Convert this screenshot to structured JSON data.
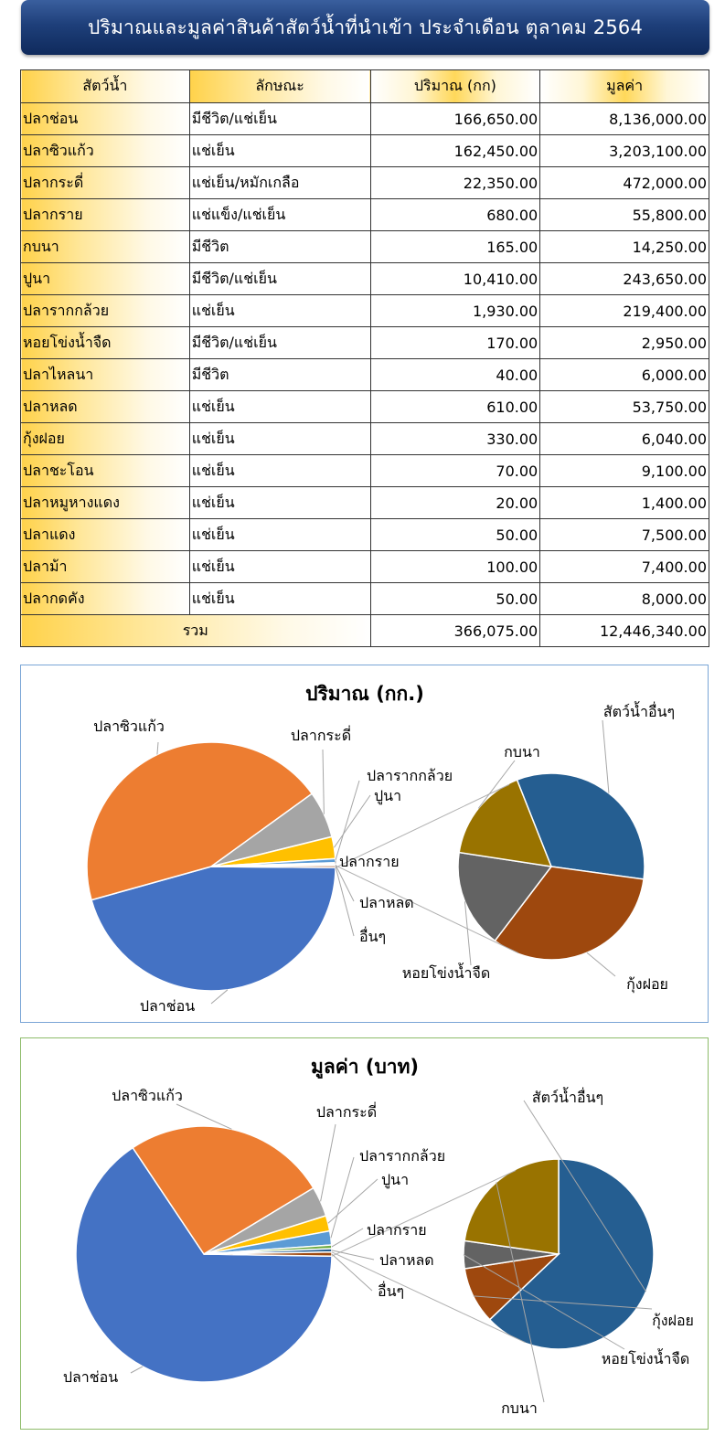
{
  "title": "ปริมาณและมูลค่าสินค้าสัตว์น้ำที่นำเข้า  ประจำเดือน  ตุลาคม  2564",
  "table": {
    "headers": [
      "สัตว์น้ำ",
      "ลักษณะ",
      "ปริมาณ (กก)",
      "มูลค่า"
    ],
    "rows": [
      [
        "ปลาช่อน",
        "มีชีวิต/แช่เย็น",
        "166,650.00",
        "8,136,000.00"
      ],
      [
        "ปลาซิวแก้ว",
        "แช่เย็น",
        "162,450.00",
        "3,203,100.00"
      ],
      [
        "ปลากระดี่",
        "แช่เย็น/หมักเกลือ",
        "22,350.00",
        "472,000.00"
      ],
      [
        "ปลากราย",
        "แช่แข็ง/แช่เย็น",
        "680.00",
        "55,800.00"
      ],
      [
        "กบนา",
        "มีชีวิต",
        "165.00",
        "14,250.00"
      ],
      [
        "ปูนา",
        "มีชีวิต/แช่เย็น",
        "10,410.00",
        "243,650.00"
      ],
      [
        "ปลารากกล้วย",
        "แช่เย็น",
        "1,930.00",
        "219,400.00"
      ],
      [
        "หอยโข่งน้ำจืด",
        "มีชีวิต/แช่เย็น",
        "170.00",
        "2,950.00"
      ],
      [
        "ปลาไหลนา",
        "มีชีวิต",
        "40.00",
        "6,000.00"
      ],
      [
        "ปลาหลด",
        "แช่เย็น",
        "610.00",
        "53,750.00"
      ],
      [
        "กุ้งฝอย",
        "แช่เย็น",
        "330.00",
        "6,040.00"
      ],
      [
        "ปลาชะโอน",
        "แช่เย็น",
        "70.00",
        "9,100.00"
      ],
      [
        "ปลาหมูหางแดง",
        "แช่เย็น",
        "20.00",
        "1,400.00"
      ],
      [
        "ปลาแดง",
        "แช่เย็น",
        "50.00",
        "7,500.00"
      ],
      [
        "ปลาม้า",
        "แช่เย็น",
        "100.00",
        "7,400.00"
      ],
      [
        "ปลากดคัง",
        "แช่เย็น",
        "50.00",
        "8,000.00"
      ]
    ],
    "total": {
      "label": "รวม",
      "quantity": "366,075.00",
      "value": "12,446,340.00"
    }
  },
  "colors": {
    "blue": "#4472c4",
    "orange": "#ed7d31",
    "gray": "#a5a5a5",
    "yellow": "#ffc000",
    "lightblue": "#5b9bd5",
    "green": "#70ad47",
    "navy": "#255e91",
    "rust": "#9e480e",
    "darkgray": "#636363",
    "olive": "#997300"
  },
  "chart_data": [
    {
      "type": "pie",
      "subtype": "pie-of-pie",
      "title": "ปริมาณ (กก.)",
      "main_slices": [
        {
          "name": "ปลาช่อน",
          "value": 166650,
          "color": "#4472c4"
        },
        {
          "name": "ปลาซิวแก้ว",
          "value": 162450,
          "color": "#ed7d31"
        },
        {
          "name": "ปลากระดี่",
          "value": 22350,
          "color": "#a5a5a5"
        },
        {
          "name": "ปูนา",
          "value": 10410,
          "color": "#ffc000"
        },
        {
          "name": "ปลารากกล้วย",
          "value": 1930,
          "color": "#5b9bd5"
        },
        {
          "name": "ปลากราย",
          "value": 680,
          "color": "#70ad47"
        },
        {
          "name": "ปลาหลด",
          "value": 610,
          "color": "#255e91"
        },
        {
          "name": "อื่นๆ",
          "value": 995,
          "color": "#9e480e"
        }
      ],
      "secondary_slices": [
        {
          "name": "สัตว์น้ำอื่นๆ",
          "value": 330,
          "color": "#255e91"
        },
        {
          "name": "กุ้งฝอย",
          "value": 330,
          "color": "#9e480e"
        },
        {
          "name": "หอยโข่งน้ำจืด",
          "value": 170,
          "color": "#636363"
        },
        {
          "name": "กบนา",
          "value": 165,
          "color": "#997300"
        }
      ]
    },
    {
      "type": "pie",
      "subtype": "pie-of-pie",
      "title": "มูลค่า (บาท)",
      "main_slices": [
        {
          "name": "ปลาช่อน",
          "value": 8136000,
          "color": "#4472c4"
        },
        {
          "name": "ปลาซิวแก้ว",
          "value": 3203100,
          "color": "#ed7d31"
        },
        {
          "name": "ปลากระดี่",
          "value": 472000,
          "color": "#a5a5a5"
        },
        {
          "name": "ปูนา",
          "value": 243650,
          "color": "#ffc000"
        },
        {
          "name": "ปลารากกล้วย",
          "value": 219400,
          "color": "#5b9bd5"
        },
        {
          "name": "ปลากราย",
          "value": 55800,
          "color": "#70ad47"
        },
        {
          "name": "ปลาหลด",
          "value": 53750,
          "color": "#255e91"
        },
        {
          "name": "อื่นๆ",
          "value": 62640,
          "color": "#9e480e"
        }
      ],
      "secondary_slices": [
        {
          "name": "สัตว์น้ำอื่นๆ",
          "value": 39400,
          "color": "#255e91"
        },
        {
          "name": "กุ้งฝอย",
          "value": 6040,
          "color": "#9e480e"
        },
        {
          "name": "หอยโข่งน้ำจืด",
          "value": 2950,
          "color": "#636363"
        },
        {
          "name": "กบนา",
          "value": 14250,
          "color": "#997300"
        }
      ]
    }
  ]
}
